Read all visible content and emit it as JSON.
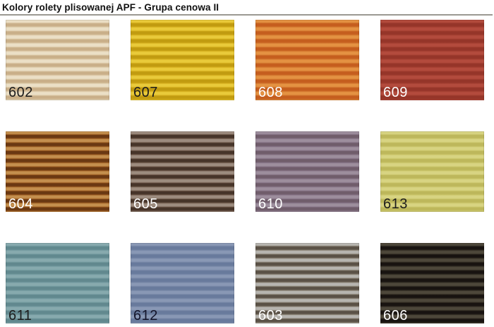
{
  "page": {
    "title": "Kolory rolety plisowanej APF - Grupa cenowa II"
  },
  "swatches": [
    {
      "code": "602",
      "light": "#ebdfc6",
      "mid": "#dbc8a6",
      "dark": "#c9af89",
      "label_color": "#1c1c1c"
    },
    {
      "code": "607",
      "light": "#e9ca3a",
      "mid": "#d5ae1c",
      "dark": "#c19b10",
      "label_color": "#1c1c1c"
    },
    {
      "code": "608",
      "light": "#e49242",
      "mid": "#d2752d",
      "dark": "#c55e1e",
      "label_color": "#ffffff"
    },
    {
      "code": "609",
      "light": "#b34b3d",
      "mid": "#a23e30",
      "dark": "#953529",
      "label_color": "#ffffff"
    },
    {
      "code": "604",
      "light": "#c48f4e",
      "mid": "#9a5a20",
      "dark": "#6a3812",
      "label_color": "#ffffff"
    },
    {
      "code": "605",
      "light": "#9d8c7f",
      "mid": "#6e5849",
      "dark": "#463429",
      "label_color": "#ffffff"
    },
    {
      "code": "610",
      "light": "#9d8e9d",
      "mid": "#847183",
      "dark": "#705d6b",
      "label_color": "#ffffff"
    },
    {
      "code": "613",
      "light": "#d8d482",
      "mid": "#cac56a",
      "dark": "#bdb75b",
      "label_color": "#1c1c1c"
    },
    {
      "code": "611",
      "light": "#87aaae",
      "mid": "#71989d",
      "dark": "#61888e",
      "label_color": "#1c1c1c"
    },
    {
      "code": "612",
      "light": "#8998b5",
      "mid": "#7485a5",
      "dark": "#687a9c",
      "label_color": "#13142a"
    },
    {
      "code": "603",
      "light": "#b7b5b0",
      "mid": "#857d6f",
      "dark": "#5a5146",
      "label_color": "#ffffff"
    },
    {
      "code": "606",
      "light": "#4d473a",
      "mid": "#2f2a21",
      "dark": "#181310",
      "label_color": "#ffffff"
    }
  ]
}
